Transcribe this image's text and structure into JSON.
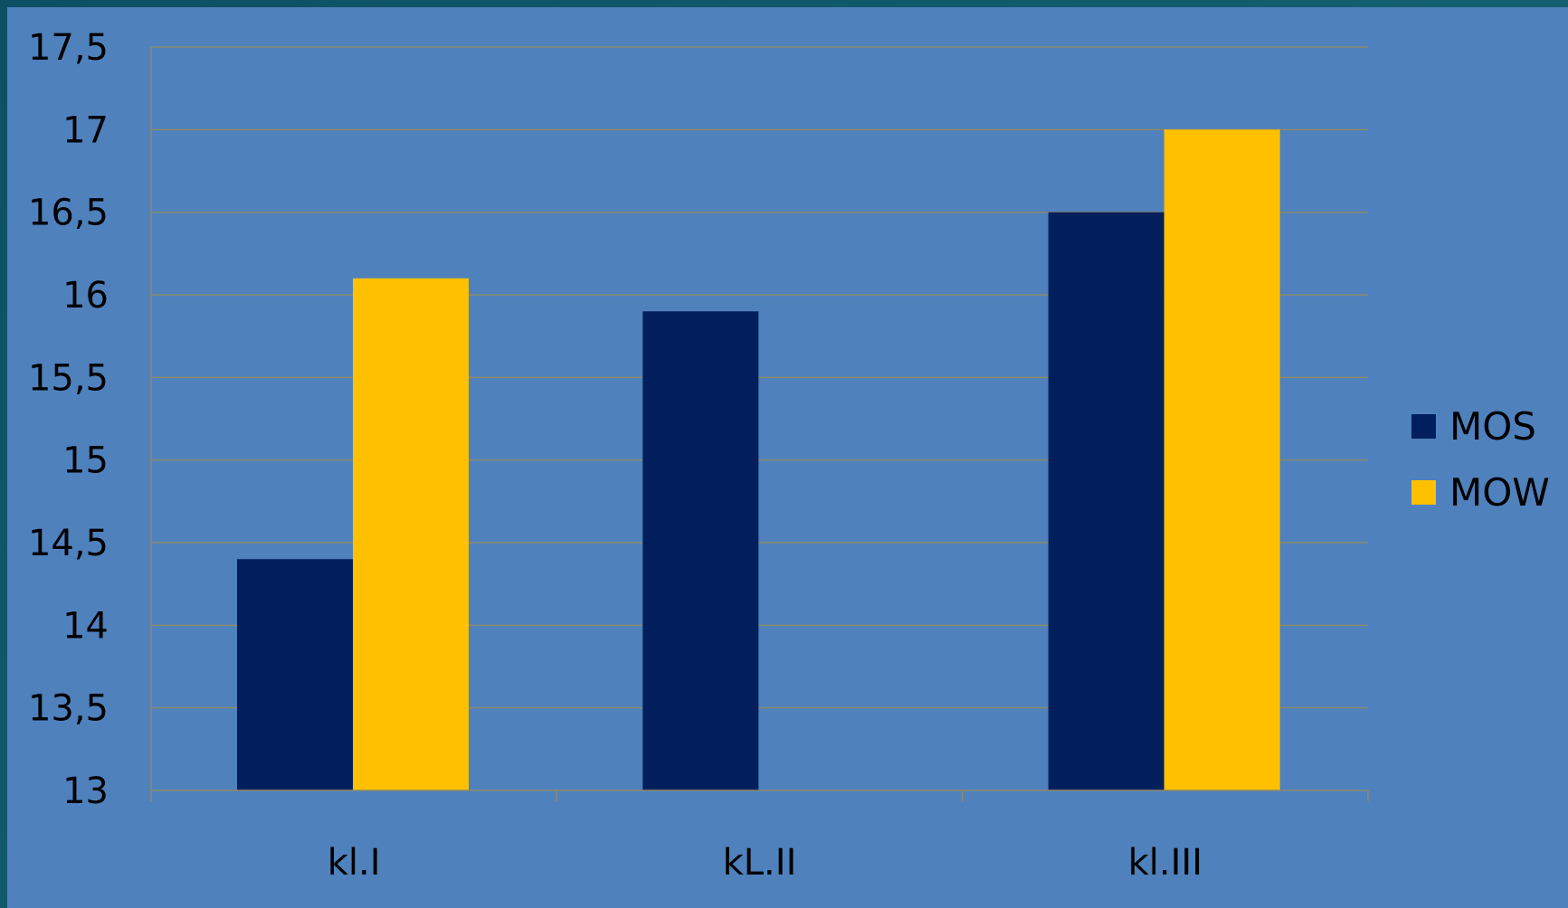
{
  "colors": {
    "plot_background": "#4f81bd",
    "frame_background": "#0f5a70",
    "gridline": "#8c8a6e",
    "axis_line": "#8c8a6e",
    "mos": "#001f5c",
    "mow": "#ffc000"
  },
  "chart_data": {
    "type": "bar",
    "title": "",
    "xlabel": "",
    "ylabel": "",
    "categories": [
      "kl.I",
      "kL.II",
      "kl.III"
    ],
    "series": [
      {
        "name": "MOS",
        "color": "#001f5c",
        "values": [
          14.4,
          15.9,
          16.5
        ]
      },
      {
        "name": "MOW",
        "color": "#ffc000",
        "values": [
          16.1,
          null,
          17.0
        ]
      }
    ],
    "ylim": [
      13,
      17.5
    ],
    "y_ticks": [
      "13",
      "13,5",
      "14",
      "14,5",
      "15",
      "15,5",
      "16",
      "16,5",
      "17",
      "17,5"
    ],
    "grid": true,
    "legend_position": "right"
  }
}
